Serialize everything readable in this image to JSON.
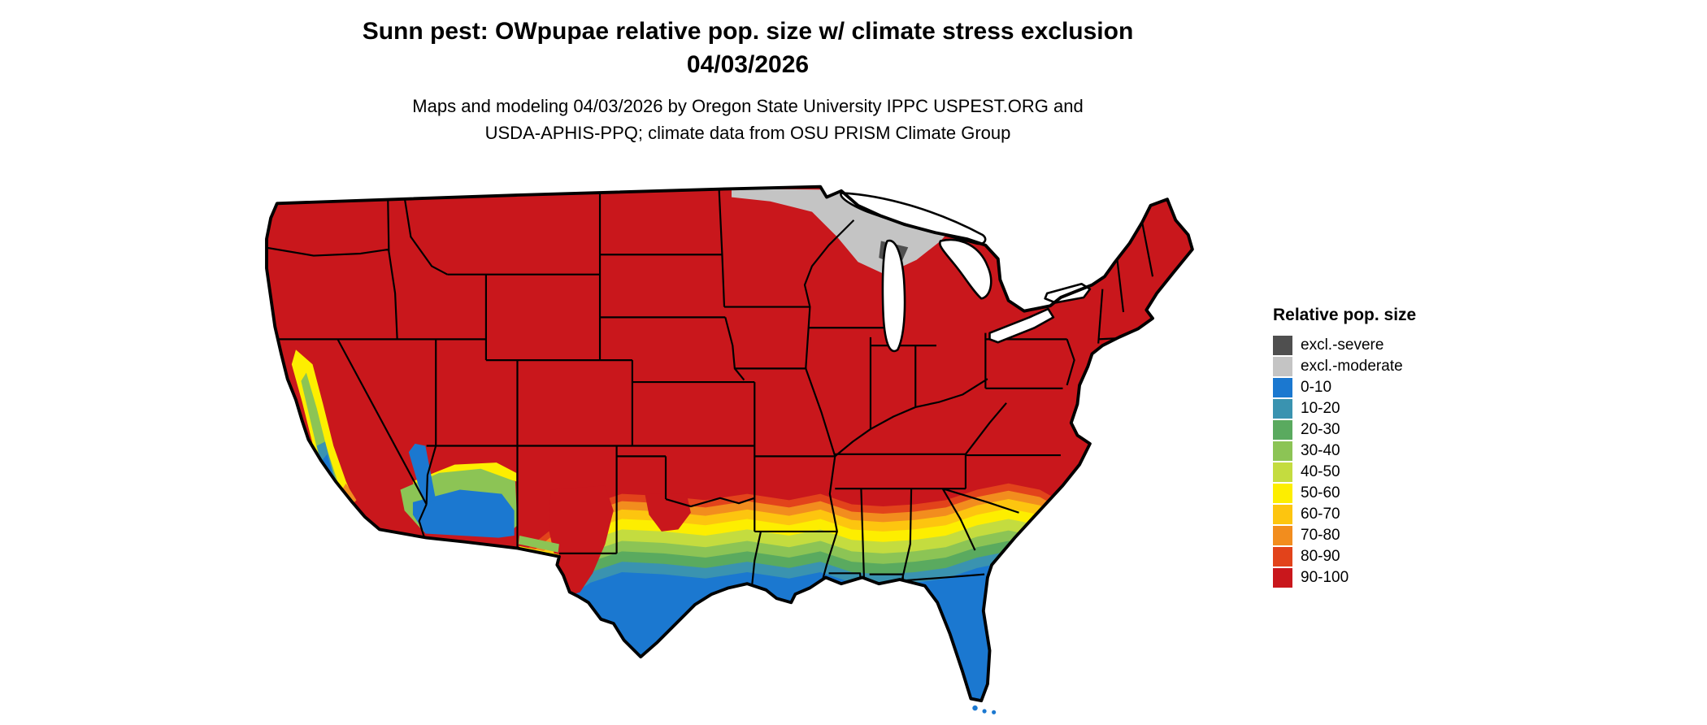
{
  "header": {
    "title_line1": "Sunn pest: OWpupae relative pop. size w/ climate stress exclusion",
    "title_line2": "04/03/2026",
    "subtitle_line1": "Maps and modeling 04/03/2026 by Oregon State University IPPC USPEST.ORG and",
    "subtitle_line2": "USDA-APHIS-PPQ; climate data from OSU PRISM Climate Group"
  },
  "legend": {
    "title": "Relative pop. size",
    "entries": [
      {
        "label": "excl.-severe",
        "color": "#4F4F4F"
      },
      {
        "label": "excl.-moderate",
        "color": "#C4C4C4"
      },
      {
        "label": "0-10",
        "color": "#1B78D0"
      },
      {
        "label": "10-20",
        "color": "#3A93B0"
      },
      {
        "label": "20-30",
        "color": "#5AAA5F"
      },
      {
        "label": "30-40",
        "color": "#8CC455"
      },
      {
        "label": "40-50",
        "color": "#C4DC3F"
      },
      {
        "label": "50-60",
        "color": "#FDEE00"
      },
      {
        "label": "60-70",
        "color": "#FDC50F"
      },
      {
        "label": "70-80",
        "color": "#F28D1E"
      },
      {
        "label": "80-90",
        "color": "#E2431B"
      },
      {
        "label": "90-100",
        "color": "#C9171C"
      }
    ]
  },
  "map": {
    "type": "choropleth-us-map",
    "description": "Continental United States; high relative population size (red) across the north, graded transition bands through the southern states, low values (blue) along the Gulf Coast, Florida and desert Southwest, climate-stress exclusion (gray) in northern Minnesota"
  }
}
